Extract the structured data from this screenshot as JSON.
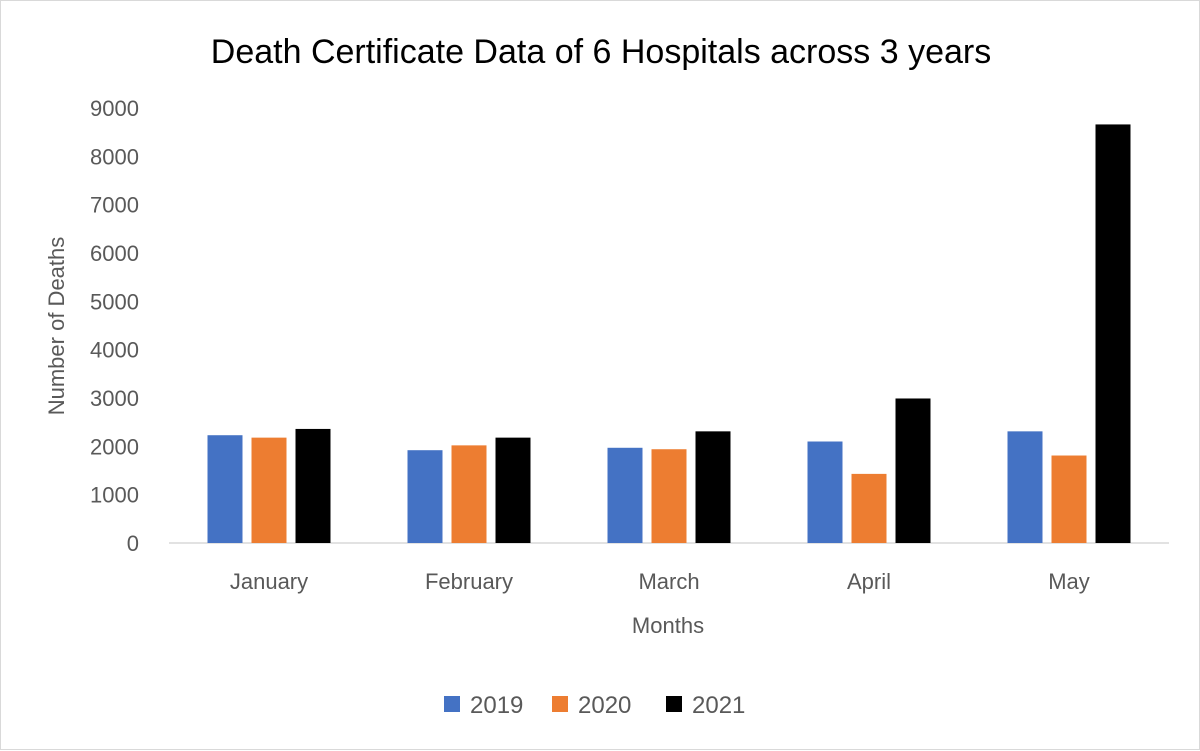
{
  "chart_data": {
    "type": "bar",
    "title": "Death Certificate Data of 6 Hospitals across 3 years",
    "xlabel": "Months",
    "ylabel": "Number of Deaths",
    "categories": [
      "January",
      "February",
      "March",
      "April",
      "May"
    ],
    "ylim": [
      0,
      9000
    ],
    "yticks": [
      0,
      1000,
      2000,
      3000,
      4000,
      5000,
      6000,
      7000,
      8000,
      9000
    ],
    "grid": false,
    "legend_position": "bottom",
    "series": [
      {
        "name": "2019",
        "color": "#4472C4",
        "values": [
          2230,
          1920,
          1970,
          2100,
          2310
        ]
      },
      {
        "name": "2020",
        "color": "#ED7D31",
        "values": [
          2180,
          2020,
          1940,
          1430,
          1810
        ]
      },
      {
        "name": "2021",
        "color": "#000000",
        "values": [
          2360,
          2180,
          2310,
          2990,
          8660
        ]
      }
    ]
  }
}
